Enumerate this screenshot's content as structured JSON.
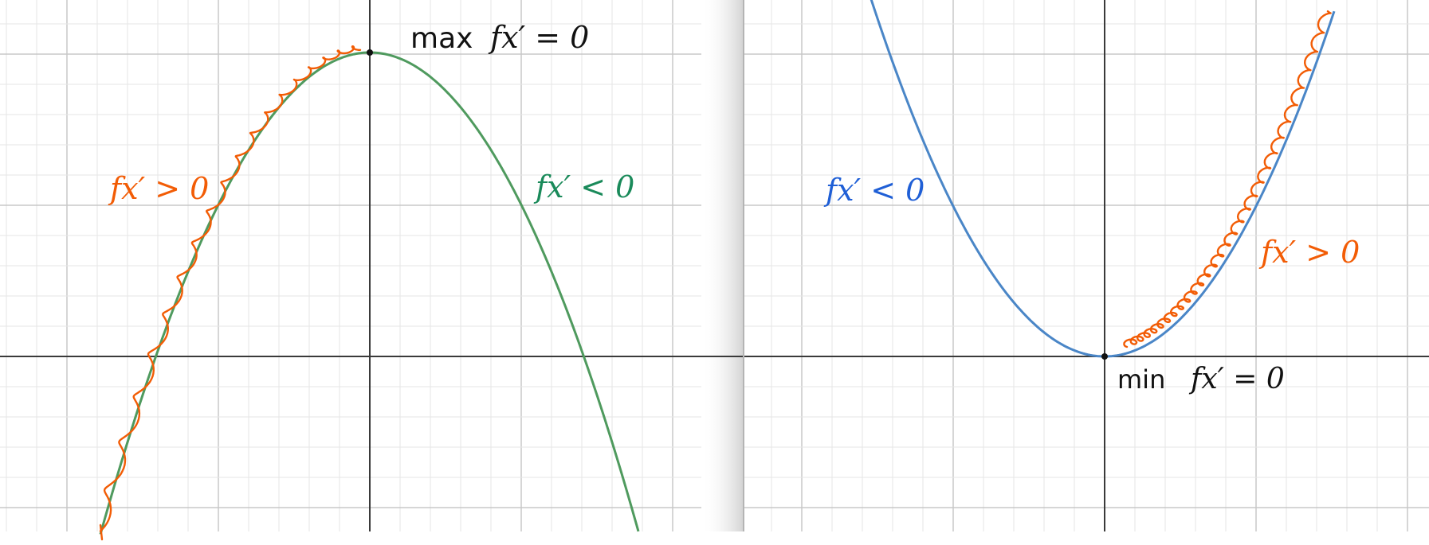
{
  "colors": {
    "grid_minor": "#e6e6e6",
    "grid_major": "#c8c8c8",
    "axis": "#3a3a3a",
    "curve_left": "#4f9a5e",
    "curve_right": "#4a86c7",
    "annotation_orange": "#f25c05",
    "annotation_green": "#1a8a5a",
    "annotation_blue": "#1f5fd6",
    "annotation_black": "#111111"
  },
  "left_panel": {
    "label_max": {
      "word": "max",
      "expr": "fx′ = 0"
    },
    "label_increasing": "fx′ > 0",
    "label_decreasing": "fx′ < 0"
  },
  "right_panel": {
    "label_min": {
      "word": "min",
      "expr": "fx′ = 0"
    },
    "label_decreasing": "fx′ < 0",
    "label_increasing": "fx′ > 0"
  },
  "icons": {
    "max_point": "dot-icon",
    "min_point": "dot-icon"
  }
}
